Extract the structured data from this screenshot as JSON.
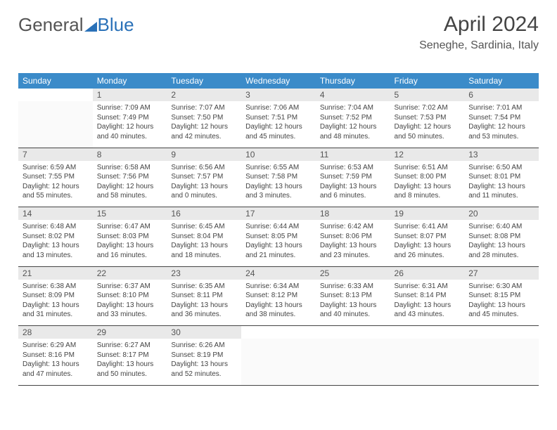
{
  "logo": {
    "general": "General",
    "blue": "Blue"
  },
  "header": {
    "month_title": "April 2024",
    "location": "Seneghe, Sardinia, Italy"
  },
  "colors": {
    "accent": "#3b8bc9",
    "header_accent": "#2a71b8"
  },
  "days_of_week": [
    "Sunday",
    "Monday",
    "Tuesday",
    "Wednesday",
    "Thursday",
    "Friday",
    "Saturday"
  ],
  "weeks": [
    [
      null,
      {
        "n": "1",
        "sunrise": "7:09 AM",
        "sunset": "7:49 PM",
        "dl1": "Daylight: 12 hours",
        "dl2": "and 40 minutes."
      },
      {
        "n": "2",
        "sunrise": "7:07 AM",
        "sunset": "7:50 PM",
        "dl1": "Daylight: 12 hours",
        "dl2": "and 42 minutes."
      },
      {
        "n": "3",
        "sunrise": "7:06 AM",
        "sunset": "7:51 PM",
        "dl1": "Daylight: 12 hours",
        "dl2": "and 45 minutes."
      },
      {
        "n": "4",
        "sunrise": "7:04 AM",
        "sunset": "7:52 PM",
        "dl1": "Daylight: 12 hours",
        "dl2": "and 48 minutes."
      },
      {
        "n": "5",
        "sunrise": "7:02 AM",
        "sunset": "7:53 PM",
        "dl1": "Daylight: 12 hours",
        "dl2": "and 50 minutes."
      },
      {
        "n": "6",
        "sunrise": "7:01 AM",
        "sunset": "7:54 PM",
        "dl1": "Daylight: 12 hours",
        "dl2": "and 53 minutes."
      }
    ],
    [
      {
        "n": "7",
        "sunrise": "6:59 AM",
        "sunset": "7:55 PM",
        "dl1": "Daylight: 12 hours",
        "dl2": "and 55 minutes."
      },
      {
        "n": "8",
        "sunrise": "6:58 AM",
        "sunset": "7:56 PM",
        "dl1": "Daylight: 12 hours",
        "dl2": "and 58 minutes."
      },
      {
        "n": "9",
        "sunrise": "6:56 AM",
        "sunset": "7:57 PM",
        "dl1": "Daylight: 13 hours",
        "dl2": "and 0 minutes."
      },
      {
        "n": "10",
        "sunrise": "6:55 AM",
        "sunset": "7:58 PM",
        "dl1": "Daylight: 13 hours",
        "dl2": "and 3 minutes."
      },
      {
        "n": "11",
        "sunrise": "6:53 AM",
        "sunset": "7:59 PM",
        "dl1": "Daylight: 13 hours",
        "dl2": "and 6 minutes."
      },
      {
        "n": "12",
        "sunrise": "6:51 AM",
        "sunset": "8:00 PM",
        "dl1": "Daylight: 13 hours",
        "dl2": "and 8 minutes."
      },
      {
        "n": "13",
        "sunrise": "6:50 AM",
        "sunset": "8:01 PM",
        "dl1": "Daylight: 13 hours",
        "dl2": "and 11 minutes."
      }
    ],
    [
      {
        "n": "14",
        "sunrise": "6:48 AM",
        "sunset": "8:02 PM",
        "dl1": "Daylight: 13 hours",
        "dl2": "and 13 minutes."
      },
      {
        "n": "15",
        "sunrise": "6:47 AM",
        "sunset": "8:03 PM",
        "dl1": "Daylight: 13 hours",
        "dl2": "and 16 minutes."
      },
      {
        "n": "16",
        "sunrise": "6:45 AM",
        "sunset": "8:04 PM",
        "dl1": "Daylight: 13 hours",
        "dl2": "and 18 minutes."
      },
      {
        "n": "17",
        "sunrise": "6:44 AM",
        "sunset": "8:05 PM",
        "dl1": "Daylight: 13 hours",
        "dl2": "and 21 minutes."
      },
      {
        "n": "18",
        "sunrise": "6:42 AM",
        "sunset": "8:06 PM",
        "dl1": "Daylight: 13 hours",
        "dl2": "and 23 minutes."
      },
      {
        "n": "19",
        "sunrise": "6:41 AM",
        "sunset": "8:07 PM",
        "dl1": "Daylight: 13 hours",
        "dl2": "and 26 minutes."
      },
      {
        "n": "20",
        "sunrise": "6:40 AM",
        "sunset": "8:08 PM",
        "dl1": "Daylight: 13 hours",
        "dl2": "and 28 minutes."
      }
    ],
    [
      {
        "n": "21",
        "sunrise": "6:38 AM",
        "sunset": "8:09 PM",
        "dl1": "Daylight: 13 hours",
        "dl2": "and 31 minutes."
      },
      {
        "n": "22",
        "sunrise": "6:37 AM",
        "sunset": "8:10 PM",
        "dl1": "Daylight: 13 hours",
        "dl2": "and 33 minutes."
      },
      {
        "n": "23",
        "sunrise": "6:35 AM",
        "sunset": "8:11 PM",
        "dl1": "Daylight: 13 hours",
        "dl2": "and 36 minutes."
      },
      {
        "n": "24",
        "sunrise": "6:34 AM",
        "sunset": "8:12 PM",
        "dl1": "Daylight: 13 hours",
        "dl2": "and 38 minutes."
      },
      {
        "n": "25",
        "sunrise": "6:33 AM",
        "sunset": "8:13 PM",
        "dl1": "Daylight: 13 hours",
        "dl2": "and 40 minutes."
      },
      {
        "n": "26",
        "sunrise": "6:31 AM",
        "sunset": "8:14 PM",
        "dl1": "Daylight: 13 hours",
        "dl2": "and 43 minutes."
      },
      {
        "n": "27",
        "sunrise": "6:30 AM",
        "sunset": "8:15 PM",
        "dl1": "Daylight: 13 hours",
        "dl2": "and 45 minutes."
      }
    ],
    [
      {
        "n": "28",
        "sunrise": "6:29 AM",
        "sunset": "8:16 PM",
        "dl1": "Daylight: 13 hours",
        "dl2": "and 47 minutes."
      },
      {
        "n": "29",
        "sunrise": "6:27 AM",
        "sunset": "8:17 PM",
        "dl1": "Daylight: 13 hours",
        "dl2": "and 50 minutes."
      },
      {
        "n": "30",
        "sunrise": "6:26 AM",
        "sunset": "8:19 PM",
        "dl1": "Daylight: 13 hours",
        "dl2": "and 52 minutes."
      },
      null,
      null,
      null,
      null
    ]
  ],
  "labels": {
    "sunrise_prefix": "Sunrise: ",
    "sunset_prefix": "Sunset: "
  }
}
